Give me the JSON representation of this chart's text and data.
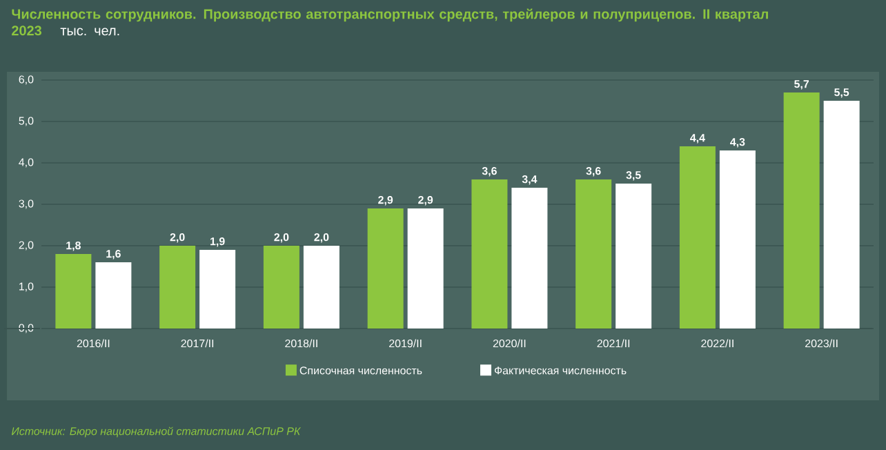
{
  "chart_data": {
    "type": "bar",
    "title": "Численность сотрудников. Производство автотранспортных средств, трейлеров и полуприцепов. II квартал 2023",
    "subtitle": "тыс. чел.",
    "categories": [
      "2016/II",
      "2017/II",
      "2018/II",
      "2019/II",
      "2020/II",
      "2021/II",
      "2022/II",
      "2023/II"
    ],
    "series": [
      {
        "name": "Списочная численность",
        "color": "#8dc63f",
        "values": [
          1.8,
          2.0,
          2.0,
          2.9,
          3.6,
          3.6,
          4.4,
          5.7
        ],
        "value_labels": [
          "1,8",
          "2,0",
          "2,0",
          "2,9",
          "3,6",
          "3,6",
          "4,4",
          "5,7"
        ]
      },
      {
        "name": "Фактическая численность",
        "color": "#ffffff",
        "values": [
          1.6,
          1.9,
          2.0,
          2.9,
          3.4,
          3.5,
          4.3,
          5.5
        ],
        "value_labels": [
          "1,6",
          "1,9",
          "2,0",
          "2,9",
          "3,4",
          "3,5",
          "4,3",
          "5,5"
        ]
      }
    ],
    "ylim": [
      0,
      6
    ],
    "yticks": [
      {
        "value": 0,
        "label": "0,0"
      },
      {
        "value": 1,
        "label": "1,0"
      },
      {
        "value": 2,
        "label": "2,0"
      },
      {
        "value": 3,
        "label": "3,0"
      },
      {
        "value": 4,
        "label": "4,0"
      },
      {
        "value": 5,
        "label": "5,0"
      },
      {
        "value": 6,
        "label": "6,0"
      }
    ],
    "grid": "y",
    "legend": "bottom",
    "annotations": [
      "Источник: Бюро национальной статистики АСПиР РК"
    ]
  }
}
